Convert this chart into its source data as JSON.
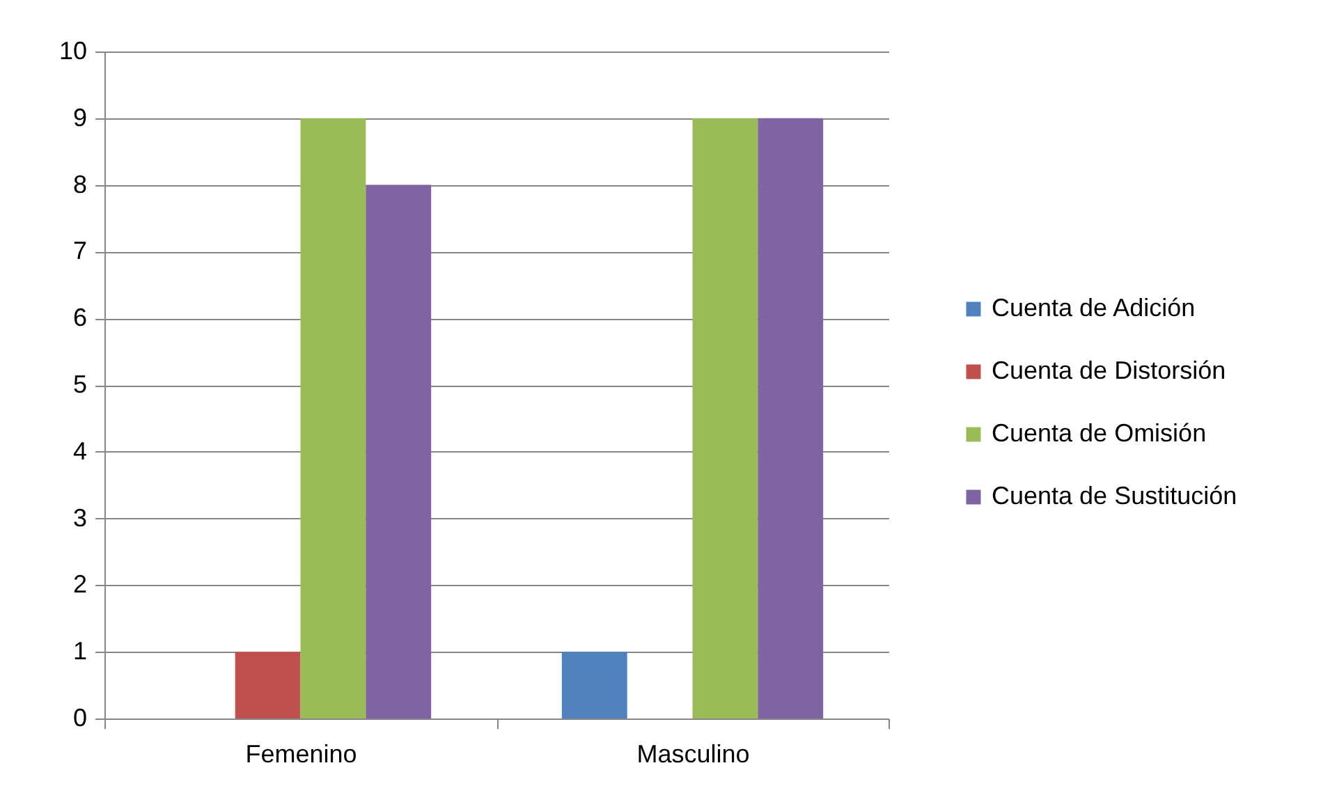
{
  "chart_data": {
    "type": "bar",
    "categories": [
      "Femenino",
      "Masculino"
    ],
    "series": [
      {
        "name": "Cuenta de Adición",
        "color": "#4f81bd",
        "values": [
          null,
          1
        ]
      },
      {
        "name": "Cuenta de Distorsión",
        "color": "#c0504d",
        "values": [
          1,
          null
        ]
      },
      {
        "name": "Cuenta de Omisión",
        "color": "#9bbb59",
        "values": [
          9,
          9
        ]
      },
      {
        "name": "Cuenta de Sustitución",
        "color": "#8064a2",
        "values": [
          8,
          9
        ]
      }
    ],
    "ylim": [
      0,
      10
    ],
    "yticks": [
      0,
      1,
      2,
      3,
      4,
      5,
      6,
      7,
      8,
      9,
      10
    ],
    "grid": "y",
    "legend": "right"
  }
}
